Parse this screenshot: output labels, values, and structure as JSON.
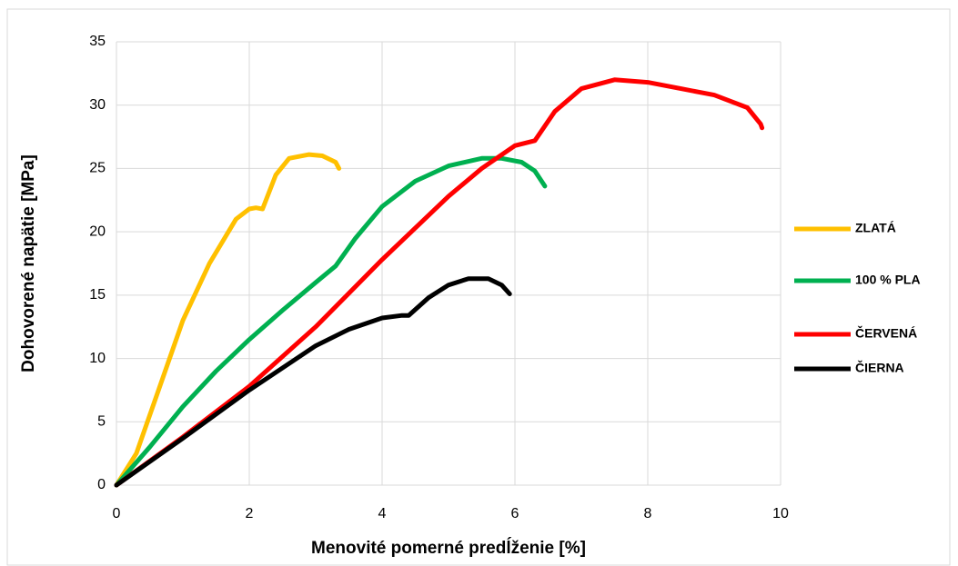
{
  "chart_data": {
    "type": "line",
    "x_label": "Menovité pomerné predĺženie [%]",
    "y_label": "Dohovorené napätie [MPa]",
    "xlim": [
      0,
      10
    ],
    "xticks": [
      0,
      2,
      4,
      6,
      8,
      10
    ],
    "ylim": [
      0,
      35
    ],
    "yticks": [
      0,
      5,
      10,
      15,
      20,
      25,
      30,
      35
    ],
    "grid": true,
    "legend": "right",
    "series": [
      {
        "name": "ZLATÁ",
        "color": "#ffc000",
        "x": [
          0,
          0.3,
          0.6,
          1,
          1.4,
          1.8,
          2,
          2.1,
          2.2,
          2.4,
          2.6,
          2.9,
          3.1,
          3.3,
          3.35
        ],
        "values": [
          0,
          2.5,
          7,
          13,
          17.5,
          21,
          21.8,
          21.9,
          21.8,
          24.5,
          25.8,
          26.1,
          26,
          25.5,
          25
        ]
      },
      {
        "name": "100 % PLA",
        "color": "#00b050",
        "x": [
          0,
          0.5,
          1,
          1.5,
          2,
          2.5,
          3,
          3.3,
          3.6,
          4,
          4.5,
          5,
          5.5,
          5.8,
          6.1,
          6.3,
          6.45
        ],
        "values": [
          0,
          3,
          6.2,
          9,
          11.5,
          13.8,
          16,
          17.3,
          19.5,
          22,
          24,
          25.2,
          25.8,
          25.8,
          25.5,
          24.8,
          23.6
        ]
      },
      {
        "name": "ČERVENÁ",
        "color": "#ff0000",
        "x": [
          0,
          1,
          2,
          3,
          4,
          5,
          5.5,
          6,
          6.3,
          6.6,
          7,
          7.5,
          8,
          8.5,
          9,
          9.5,
          9.7,
          9.72
        ],
        "values": [
          0,
          3.8,
          7.8,
          12.5,
          17.8,
          22.8,
          25,
          26.8,
          27.2,
          29.5,
          31.3,
          32,
          31.8,
          31.3,
          30.8,
          29.8,
          28.5,
          28.2
        ]
      },
      {
        "name": "ČIERNA",
        "color": "#000000",
        "x": [
          0,
          1,
          2,
          3,
          3.5,
          4,
          4.3,
          4.4,
          4.7,
          5,
          5.3,
          5.6,
          5.8,
          5.92
        ],
        "values": [
          0,
          3.7,
          7.5,
          11,
          12.3,
          13.2,
          13.4,
          13.4,
          14.8,
          15.8,
          16.3,
          16.3,
          15.8,
          15.1
        ]
      }
    ]
  }
}
